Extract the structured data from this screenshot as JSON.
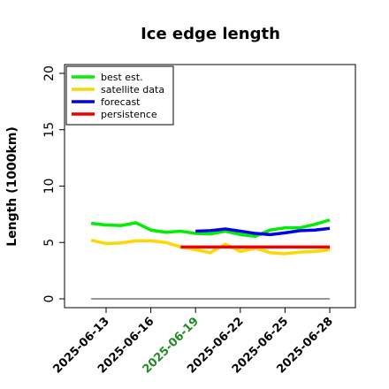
{
  "chart_data": {
    "type": "line",
    "title": "Ice edge length",
    "xlabel": "",
    "ylabel": "Length (1000km)",
    "ylim": [
      0,
      20
    ],
    "yticks": [
      "0",
      "5",
      "10",
      "15",
      "20"
    ],
    "xlim": [
      "2025-06-10",
      "2025-06-30"
    ],
    "xticks": [
      {
        "date": "2025-06-13",
        "label": "2025-06-13",
        "color": "#000000"
      },
      {
        "date": "2025-06-16",
        "label": "2025-06-16",
        "color": "#000000"
      },
      {
        "date": "2025-06-19",
        "label": "2025-06-19",
        "color": "#228B22"
      },
      {
        "date": "2025-06-22",
        "label": "2025-06-22",
        "color": "#000000"
      },
      {
        "date": "2025-06-25",
        "label": "2025-06-25",
        "color": "#000000"
      },
      {
        "date": "2025-06-28",
        "label": "2025-06-28",
        "color": "#000000"
      }
    ],
    "grid": false,
    "legend_position": "top-left",
    "series": [
      {
        "name": "best est.",
        "color": "#00ee00",
        "points": [
          [
            "2025-06-12",
            6.7
          ],
          [
            "2025-06-13",
            6.55
          ],
          [
            "2025-06-14",
            6.5
          ],
          [
            "2025-06-15",
            6.75
          ],
          [
            "2025-06-16",
            6.1
          ],
          [
            "2025-06-17",
            5.9
          ],
          [
            "2025-06-18",
            6.0
          ],
          [
            "2025-06-19",
            5.8
          ],
          [
            "2025-06-20",
            5.75
          ],
          [
            "2025-06-21",
            6.0
          ],
          [
            "2025-06-22",
            5.7
          ],
          [
            "2025-06-23",
            5.55
          ],
          [
            "2025-06-24",
            6.1
          ],
          [
            "2025-06-25",
            6.3
          ],
          [
            "2025-06-26",
            6.3
          ],
          [
            "2025-06-27",
            6.6
          ],
          [
            "2025-06-28",
            7.0
          ]
        ]
      },
      {
        "name": "satellite data",
        "color": "#ffd700",
        "points": [
          [
            "2025-06-12",
            5.2
          ],
          [
            "2025-06-13",
            4.9
          ],
          [
            "2025-06-14",
            4.95
          ],
          [
            "2025-06-15",
            5.15
          ],
          [
            "2025-06-16",
            5.15
          ],
          [
            "2025-06-17",
            5.0
          ],
          [
            "2025-06-18",
            4.6
          ],
          [
            "2025-06-19",
            4.35
          ],
          [
            "2025-06-20",
            4.1
          ],
          [
            "2025-06-21",
            4.85
          ],
          [
            "2025-06-22",
            4.2
          ],
          [
            "2025-06-23",
            4.5
          ],
          [
            "2025-06-24",
            4.1
          ],
          [
            "2025-06-25",
            4.0
          ],
          [
            "2025-06-26",
            4.15
          ],
          [
            "2025-06-27",
            4.2
          ],
          [
            "2025-06-28",
            4.35
          ]
        ]
      },
      {
        "name": "forecast",
        "color": "#0000ee",
        "points": [
          [
            "2025-06-19",
            6.0
          ],
          [
            "2025-06-20",
            6.05
          ],
          [
            "2025-06-21",
            6.2
          ],
          [
            "2025-06-22",
            6.0
          ],
          [
            "2025-06-23",
            5.8
          ],
          [
            "2025-06-24",
            5.7
          ],
          [
            "2025-06-25",
            5.85
          ],
          [
            "2025-06-26",
            6.05
          ],
          [
            "2025-06-27",
            6.1
          ],
          [
            "2025-06-28",
            6.25
          ]
        ]
      },
      {
        "name": "persistence",
        "color": "#ee0000",
        "points": [
          [
            "2025-06-18",
            4.6
          ],
          [
            "2025-06-28",
            4.6
          ]
        ]
      }
    ],
    "reference_line": {
      "color": "#777777",
      "points": [
        [
          "2025-06-12",
          0
        ],
        [
          "2025-06-28",
          0
        ]
      ]
    }
  }
}
